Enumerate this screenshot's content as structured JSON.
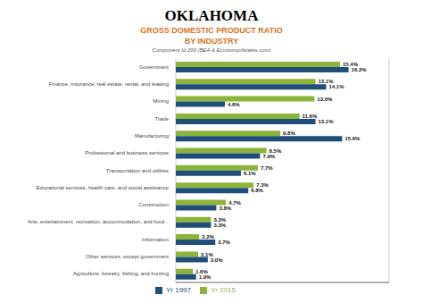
{
  "chart_data": {
    "type": "bar",
    "orientation": "horizontal",
    "title": "OKLAHOMA",
    "subtitle": [
      "GROSS DOMESTIC PRODUCT RATIO",
      "BY INDUSTRY"
    ],
    "annotations": [
      "Component Id 200 (BEA & Economyofstates.com)"
    ],
    "categories": [
      "Government",
      "Finance, insurance, real estate, rental, and leasing",
      "Mining",
      "Trade",
      "Manufacturing",
      "Professional and business services",
      "Transportation and utilities",
      "Educational services, health care, and social assistance",
      "Construction",
      "Arts, entertainment, recreation, accommodation, and food...",
      "Information",
      "Other services, except government",
      "Agriculture, forestry, fishing, and hunting"
    ],
    "series": [
      {
        "name": "Yr 2015",
        "color": "#8DB43A",
        "values": [
          15.4,
          13.1,
          13.0,
          11.6,
          9.8,
          8.5,
          7.7,
          7.3,
          4.7,
          3.3,
          2.2,
          2.1,
          1.6
        ],
        "value_labels": [
          "15.4%",
          "13.1%",
          "13.0%",
          "11.6%",
          "9.8%",
          "8.5%",
          "7.7%",
          "7.3%",
          "4.7%",
          "3.3%",
          "2.2%",
          "2.1%",
          "1.6%"
        ]
      },
      {
        "name": "Yr 1997",
        "color": "#1F4E79",
        "values": [
          16.2,
          14.1,
          4.6,
          13.1,
          15.6,
          7.9,
          6.1,
          6.8,
          3.8,
          3.3,
          3.7,
          3.0,
          1.9
        ],
        "value_labels": [
          "16.2%",
          "14.1%",
          "4.6%",
          "13.1%",
          "15.6%",
          "7.9%",
          "6.1%",
          "6.8%",
          "3.8%",
          "3.3%",
          "3.7%",
          "3.0%",
          "1.9%"
        ]
      }
    ],
    "xlim": [
      0,
      20
    ],
    "xticks": [
      2.5,
      5.0,
      7.5,
      10.0,
      12.5,
      15.0,
      17.5
    ],
    "grid": true,
    "legend": "bottom",
    "data_labels": true,
    "tick_labels": "y"
  }
}
